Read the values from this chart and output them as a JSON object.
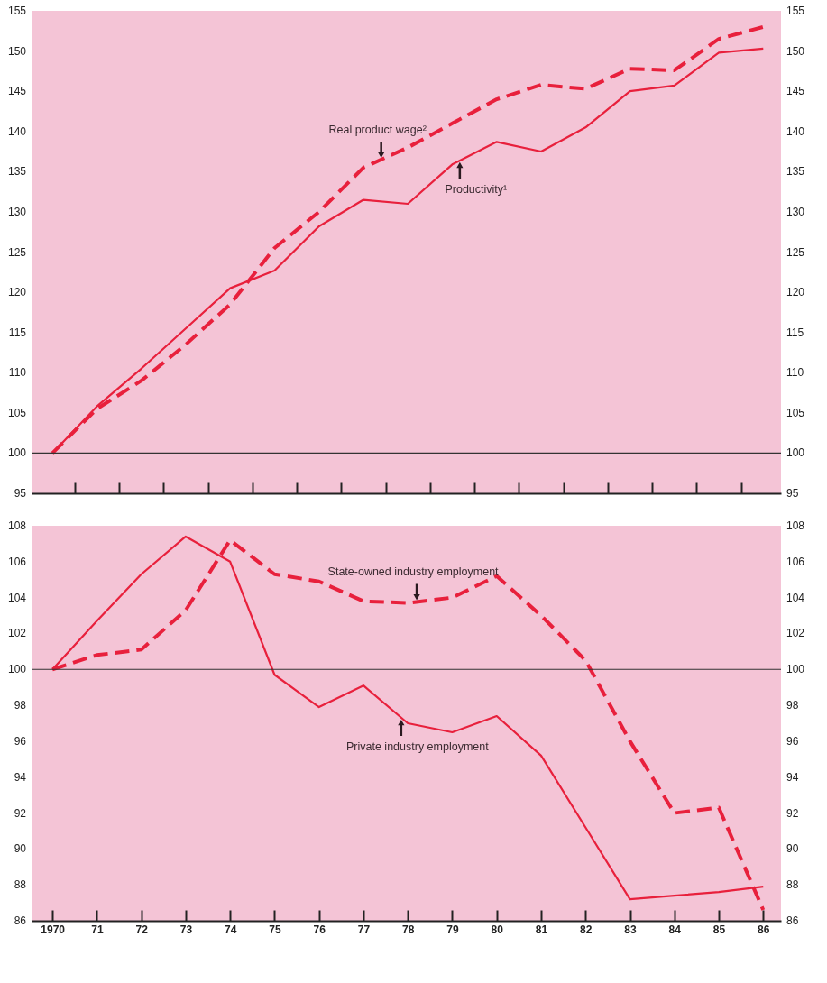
{
  "chart_data": [
    {
      "type": "line",
      "tick_labels": "y",
      "grid": false,
      "marker": "none",
      "x": [
        1970,
        1971,
        1972,
        1973,
        1974,
        1975,
        1976,
        1977,
        1978,
        1979,
        1980,
        1981,
        1982,
        1983,
        1984,
        1985,
        1986
      ],
      "xlim": [
        1969.53,
        1986.4
      ],
      "xticks": [
        {
          "value": 1970.5,
          "label": null
        },
        {
          "value": 1971.5,
          "label": null
        },
        {
          "value": 1972.5,
          "label": null
        },
        {
          "value": 1973.5,
          "label": null
        },
        {
          "value": 1974.5,
          "label": null
        },
        {
          "value": 1975.5,
          "label": null
        },
        {
          "value": 1976.5,
          "label": null
        },
        {
          "value": 1977.5,
          "label": null
        },
        {
          "value": 1978.5,
          "label": null
        },
        {
          "value": 1979.5,
          "label": null
        },
        {
          "value": 1980.5,
          "label": null
        },
        {
          "value": 1981.5,
          "label": null
        },
        {
          "value": 1982.5,
          "label": null
        },
        {
          "value": 1983.5,
          "label": null
        },
        {
          "value": 1984.5,
          "label": null
        },
        {
          "value": 1985.5,
          "label": null
        }
      ],
      "ylim": [
        95,
        155
      ],
      "yticks": [
        95,
        100,
        105,
        110,
        115,
        120,
        125,
        130,
        135,
        140,
        145,
        150,
        155
      ],
      "y2lim": [
        95,
        155
      ],
      "y2ticks": [
        95,
        100,
        105,
        110,
        115,
        120,
        125,
        130,
        135,
        140,
        145,
        150,
        155
      ],
      "series": [
        {
          "color": "#e8203c",
          "line_style": "dashed",
          "values": [
            100,
            105.5,
            109,
            113.5,
            118.5,
            125.5,
            130,
            135.5,
            138,
            141,
            144,
            145.8,
            145.3,
            147.8,
            147.6,
            151.5,
            153
          ]
        },
        {
          "color": "#e8203c",
          "line_style": "solid",
          "values": [
            100,
            105.8,
            110.5,
            115.5,
            120.5,
            122.7,
            128.2,
            131.5,
            131,
            135.9,
            138.7,
            137.5,
            140.5,
            145,
            145.7,
            149.8,
            150.3
          ]
        }
      ],
      "ref_lines": [
        {
          "axis": "y",
          "value": 100,
          "color": "#333333"
        }
      ],
      "annotations": [
        {
          "text": "Real product wage²",
          "x": 1977.4,
          "y": 136.5
        },
        {
          "text": "Productivity¹",
          "x": 1979.17,
          "y": 136.4
        }
      ]
    },
    {
      "type": "line",
      "grid": false,
      "marker": "none",
      "x": [
        1970,
        1971,
        1972,
        1973,
        1974,
        1975,
        1976,
        1977,
        1978,
        1979,
        1980,
        1981,
        1982,
        1983,
        1984,
        1985,
        1986
      ],
      "xlim": [
        1969.53,
        1986.4
      ],
      "xticks": [
        {
          "value": 1970,
          "label": "1970"
        },
        {
          "value": 1971,
          "label": "71"
        },
        {
          "value": 1972,
          "label": "72"
        },
        {
          "value": 1973,
          "label": "73"
        },
        {
          "value": 1974,
          "label": "74"
        },
        {
          "value": 1975,
          "label": "75"
        },
        {
          "value": 1976,
          "label": "76"
        },
        {
          "value": 1977,
          "label": "77"
        },
        {
          "value": 1978,
          "label": "78"
        },
        {
          "value": 1979,
          "label": "79"
        },
        {
          "value": 1980,
          "label": "80"
        },
        {
          "value": 1981,
          "label": "81"
        },
        {
          "value": 1982,
          "label": "82"
        },
        {
          "value": 1983,
          "label": "83"
        },
        {
          "value": 1984,
          "label": "84"
        },
        {
          "value": 1985,
          "label": "85"
        },
        {
          "value": 1986,
          "label": "86"
        }
      ],
      "ylim": [
        86,
        108
      ],
      "yticks": [
        86,
        88,
        90,
        92,
        94,
        96,
        98,
        100,
        102,
        104,
        106,
        108
      ],
      "y2lim": [
        86,
        108
      ],
      "y2ticks": [
        86,
        88,
        90,
        92,
        94,
        96,
        98,
        100,
        102,
        104,
        106,
        108
      ],
      "series": [
        {
          "color": "#e8203c",
          "line_style": "dashed",
          "values": [
            100,
            100.8,
            101.1,
            103.3,
            107.2,
            105.3,
            104.9,
            103.8,
            103.7,
            104,
            105.2,
            103,
            100.5,
            96,
            92,
            92.3,
            86.6
          ]
        },
        {
          "color": "#e8203c",
          "line_style": "solid",
          "values": [
            100,
            102.7,
            105.3,
            107.4,
            106,
            99.7,
            97.9,
            99.1,
            97,
            96.5,
            97.4,
            95.2,
            91.2,
            87.2,
            87.4,
            87.6,
            87.9
          ]
        }
      ],
      "ref_lines": [
        {
          "axis": "y",
          "value": 100,
          "color": "#333333"
        }
      ],
      "annotations": [
        {
          "text": "State-owned industry employment",
          "x": 1978.2,
          "y": 103.76
        },
        {
          "text": "Private industry employment",
          "x": 1977.85,
          "y": 97.3
        }
      ]
    }
  ]
}
